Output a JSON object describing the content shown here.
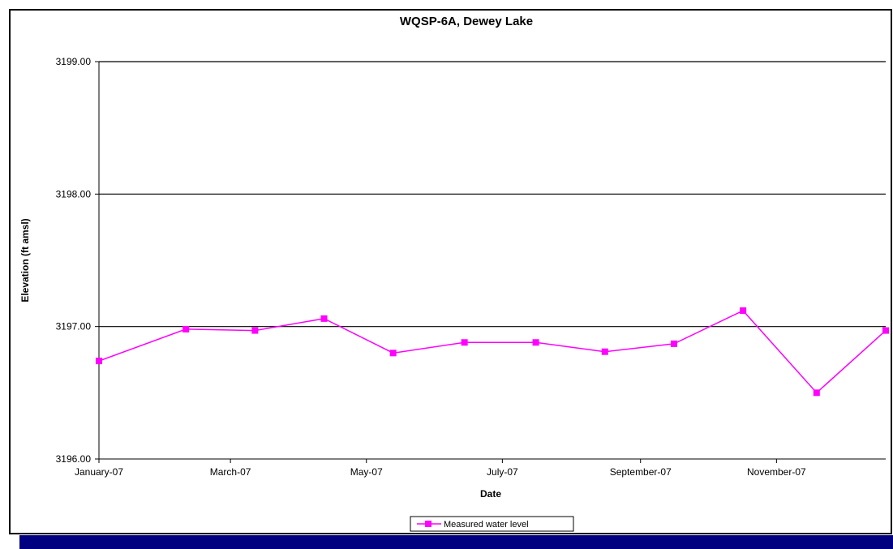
{
  "chart_data": {
    "type": "line",
    "title": "WQSP-6A, Dewey Lake",
    "xlabel": "Date",
    "ylabel": "Elevation (ft amsl)",
    "ylim": [
      3196.0,
      3199.0
    ],
    "yticks": [
      "3196.00",
      "3197.00",
      "3198.00",
      "3199.00"
    ],
    "xticks": [
      "January-07",
      "March-07",
      "May-07",
      "July-07",
      "September-07",
      "November-07"
    ],
    "xlim": [
      "2007-01-01",
      "2007-12-20"
    ],
    "grid": "horizontal major gridlines",
    "legend_position": "bottom-center",
    "series": [
      {
        "name": "Measured water level",
        "color": "#FF00FF",
        "marker": "square",
        "x": [
          "2007-01-01",
          "2007-02-09",
          "2007-03-12",
          "2007-04-12",
          "2007-05-13",
          "2007-06-14",
          "2007-07-16",
          "2007-08-16",
          "2007-09-16",
          "2007-10-17",
          "2007-11-19",
          "2007-12-20"
        ],
        "y": [
          3196.74,
          3196.98,
          3196.97,
          3197.06,
          3196.8,
          3196.88,
          3196.88,
          3196.81,
          3196.87,
          3197.12,
          3196.5,
          3196.97
        ]
      }
    ]
  },
  "colors": {
    "frame": "#000000",
    "series": "#FF00FF",
    "band": "#000080"
  }
}
